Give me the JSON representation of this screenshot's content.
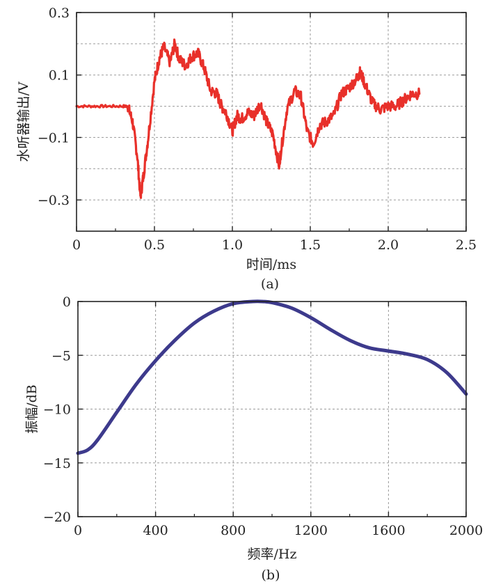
{
  "chart_data": [
    {
      "type": "line",
      "caption": "(a)",
      "xlabel": "时间/ms",
      "ylabel": "水听器输出/V",
      "xlim": [
        0,
        2.5
      ],
      "ylim": [
        -0.4,
        0.3
      ],
      "x_ticks": [
        0,
        0.5,
        1.0,
        1.5,
        2.0,
        2.5
      ],
      "x_tick_labels": [
        "0",
        "0.5",
        "1.0",
        "1.5",
        "2.0",
        "2.5"
      ],
      "y_ticks": [
        0.3,
        0.1,
        -0.1,
        -0.3
      ],
      "y_tick_labels": [
        "0.3",
        "0.1",
        "−0.1",
        "−0.3"
      ],
      "grid": true,
      "color": "#e8302a",
      "series": [
        {
          "x": [
            0,
            0.1,
            0.2,
            0.3,
            0.33,
            0.36,
            0.39,
            0.41,
            0.43,
            0.46,
            0.5,
            0.53,
            0.56,
            0.6,
            0.63,
            0.66,
            0.7,
            0.74,
            0.78,
            0.82,
            0.86,
            0.9,
            0.93,
            0.96,
            1.0,
            1.03,
            1.06,
            1.1,
            1.14,
            1.18,
            1.22,
            1.26,
            1.3,
            1.31,
            1.35,
            1.4,
            1.44,
            1.48,
            1.52,
            1.56,
            1.6,
            1.65,
            1.7,
            1.75,
            1.8,
            1.82,
            1.86,
            1.9,
            1.95,
            2.0,
            2.05,
            2.1,
            2.15,
            2.2
          ],
          "y": [
            0.0,
            0.0,
            0.0,
            0.0,
            0.0,
            -0.05,
            -0.16,
            -0.29,
            -0.22,
            -0.1,
            0.08,
            0.15,
            0.19,
            0.14,
            0.2,
            0.15,
            0.13,
            0.16,
            0.17,
            0.12,
            0.05,
            0.04,
            0.0,
            -0.02,
            -0.08,
            -0.03,
            -0.04,
            -0.02,
            -0.03,
            0.01,
            -0.05,
            -0.09,
            -0.19,
            -0.15,
            -0.01,
            0.05,
            0.03,
            -0.08,
            -0.12,
            -0.06,
            -0.05,
            -0.03,
            0.04,
            0.06,
            0.09,
            0.11,
            0.06,
            0.01,
            -0.01,
            0.0,
            0.0,
            0.02,
            0.04,
            0.04
          ]
        }
      ]
    },
    {
      "type": "line",
      "caption": "(b)",
      "xlabel": "频率/Hz",
      "ylabel": "振幅/dB",
      "xlim": [
        0,
        2000
      ],
      "ylim": [
        -20,
        0
      ],
      "x_ticks": [
        0,
        400,
        800,
        1200,
        1600,
        2000
      ],
      "x_tick_labels": [
        "0",
        "400",
        "800",
        "1200",
        "1600",
        "2000"
      ],
      "y_ticks": [
        0,
        -5,
        -10,
        -15,
        -20
      ],
      "y_tick_labels": [
        "0",
        "−5",
        "−10",
        "−15",
        "−20"
      ],
      "grid": true,
      "color": "#3d3a8c",
      "series": [
        {
          "x": [
            0,
            50,
            100,
            200,
            300,
            400,
            500,
            600,
            700,
            800,
            900,
            950,
            1000,
            1100,
            1200,
            1300,
            1400,
            1500,
            1600,
            1700,
            1800,
            1900,
            2000
          ],
          "y": [
            -14.1,
            -13.8,
            -12.9,
            -10.3,
            -7.7,
            -5.5,
            -3.6,
            -2.0,
            -0.9,
            -0.2,
            0.0,
            0.0,
            -0.1,
            -0.6,
            -1.5,
            -2.6,
            -3.6,
            -4.3,
            -4.6,
            -4.9,
            -5.4,
            -6.6,
            -8.6
          ]
        }
      ]
    }
  ]
}
